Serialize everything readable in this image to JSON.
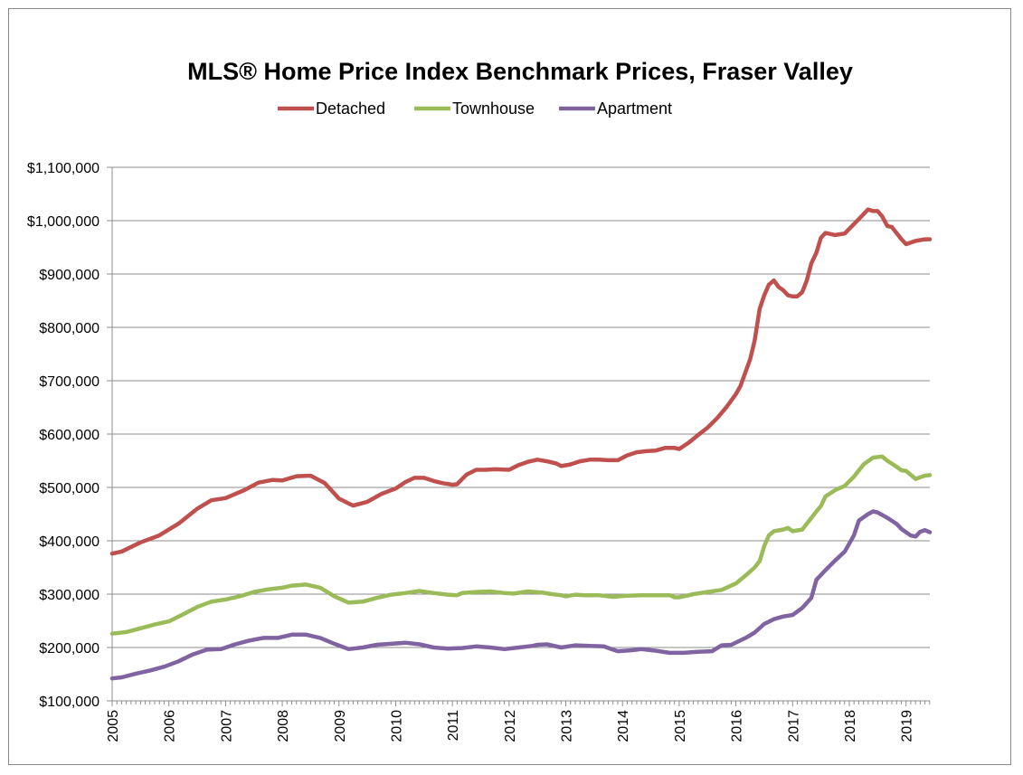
{
  "chart_data": {
    "type": "line",
    "title": "MLS® Home Price Index Benchmark Prices, Fraser Valley",
    "xlabel": "",
    "ylabel": "",
    "ylim": [
      100000,
      1100000
    ],
    "xlim": [
      2005,
      2019.42
    ],
    "y_ticks": [
      100000,
      200000,
      300000,
      400000,
      500000,
      600000,
      700000,
      800000,
      900000,
      1000000,
      1100000
    ],
    "y_tick_labels": [
      "$100,000",
      "$200,000",
      "$300,000",
      "$400,000",
      "$500,000",
      "$600,000",
      "$700,000",
      "$800,000",
      "$900,000",
      "$1,000,000",
      "$1,100,000"
    ],
    "x_ticks": [
      2005,
      2006,
      2007,
      2008,
      2009,
      2010,
      2011,
      2012,
      2013,
      2014,
      2015,
      2016,
      2017,
      2018,
      2019
    ],
    "x_tick_labels": [
      "2005",
      "2006",
      "2007",
      "2008",
      "2009",
      "2010",
      "2011",
      "2012",
      "2013",
      "2014",
      "2015",
      "2016",
      "2017",
      "2018",
      "2019"
    ],
    "grid": "horizontal",
    "legend_position": "top",
    "series": [
      {
        "name": "Detached",
        "color": "#c0504d",
        "points": [
          [
            2005.0,
            376000
          ],
          [
            2005.17,
            380000
          ],
          [
            2005.5,
            397000
          ],
          [
            2005.83,
            410000
          ],
          [
            2006.17,
            432000
          ],
          [
            2006.5,
            460000
          ],
          [
            2006.75,
            476000
          ],
          [
            2007.0,
            480000
          ],
          [
            2007.33,
            495000
          ],
          [
            2007.58,
            509000
          ],
          [
            2007.83,
            514000
          ],
          [
            2008.0,
            513000
          ],
          [
            2008.25,
            521000
          ],
          [
            2008.5,
            522000
          ],
          [
            2008.75,
            508000
          ],
          [
            2009.0,
            479000
          ],
          [
            2009.17,
            470000
          ],
          [
            2009.25,
            466000
          ],
          [
            2009.5,
            473000
          ],
          [
            2009.75,
            488000
          ],
          [
            2010.0,
            498000
          ],
          [
            2010.17,
            510000
          ],
          [
            2010.33,
            518000
          ],
          [
            2010.5,
            518000
          ],
          [
            2010.67,
            512000
          ],
          [
            2010.83,
            508000
          ],
          [
            2011.0,
            505000
          ],
          [
            2011.08,
            506000
          ],
          [
            2011.25,
            524000
          ],
          [
            2011.42,
            533000
          ],
          [
            2011.58,
            533000
          ],
          [
            2011.75,
            534000
          ],
          [
            2012.0,
            533000
          ],
          [
            2012.17,
            542000
          ],
          [
            2012.33,
            548000
          ],
          [
            2012.5,
            552000
          ],
          [
            2012.67,
            549000
          ],
          [
            2012.83,
            545000
          ],
          [
            2012.92,
            540000
          ],
          [
            2013.08,
            543000
          ],
          [
            2013.25,
            549000
          ],
          [
            2013.42,
            552000
          ],
          [
            2013.58,
            552000
          ],
          [
            2013.75,
            551000
          ],
          [
            2013.92,
            551000
          ],
          [
            2014.08,
            560000
          ],
          [
            2014.25,
            566000
          ],
          [
            2014.42,
            568000
          ],
          [
            2014.58,
            569000
          ],
          [
            2014.75,
            574000
          ],
          [
            2014.92,
            574000
          ],
          [
            2015.0,
            572000
          ],
          [
            2015.17,
            584000
          ],
          [
            2015.33,
            598000
          ],
          [
            2015.5,
            612000
          ],
          [
            2015.67,
            630000
          ],
          [
            2015.83,
            650000
          ],
          [
            2016.0,
            675000
          ],
          [
            2016.08,
            690000
          ],
          [
            2016.25,
            740000
          ],
          [
            2016.33,
            775000
          ],
          [
            2016.42,
            835000
          ],
          [
            2016.5,
            860000
          ],
          [
            2016.58,
            880000
          ],
          [
            2016.67,
            888000
          ],
          [
            2016.75,
            876000
          ],
          [
            2016.83,
            870000
          ],
          [
            2016.92,
            860000
          ],
          [
            2017.0,
            858000
          ],
          [
            2017.08,
            858000
          ],
          [
            2017.17,
            866000
          ],
          [
            2017.25,
            888000
          ],
          [
            2017.33,
            920000
          ],
          [
            2017.42,
            940000
          ],
          [
            2017.5,
            968000
          ],
          [
            2017.58,
            977000
          ],
          [
            2017.75,
            973000
          ],
          [
            2017.92,
            976000
          ],
          [
            2018.0,
            985000
          ],
          [
            2018.17,
            1003000
          ],
          [
            2018.33,
            1021000
          ],
          [
            2018.42,
            1018000
          ],
          [
            2018.5,
            1018000
          ],
          [
            2018.58,
            1008000
          ],
          [
            2018.67,
            990000
          ],
          [
            2018.75,
            988000
          ],
          [
            2018.92,
            965000
          ],
          [
            2019.0,
            956000
          ],
          [
            2019.17,
            962000
          ],
          [
            2019.33,
            965000
          ],
          [
            2019.42,
            965000
          ]
        ]
      },
      {
        "name": "Townhouse",
        "color": "#9bbb59",
        "points": [
          [
            2005.0,
            226000
          ],
          [
            2005.25,
            229000
          ],
          [
            2005.5,
            236000
          ],
          [
            2005.75,
            243000
          ],
          [
            2006.0,
            249000
          ],
          [
            2006.25,
            262000
          ],
          [
            2006.5,
            276000
          ],
          [
            2006.75,
            286000
          ],
          [
            2007.0,
            290000
          ],
          [
            2007.25,
            296000
          ],
          [
            2007.5,
            304000
          ],
          [
            2007.75,
            309000
          ],
          [
            2008.0,
            312000
          ],
          [
            2008.17,
            316000
          ],
          [
            2008.42,
            318000
          ],
          [
            2008.67,
            312000
          ],
          [
            2008.92,
            296000
          ],
          [
            2009.17,
            284000
          ],
          [
            2009.42,
            286000
          ],
          [
            2009.67,
            293000
          ],
          [
            2009.92,
            299000
          ],
          [
            2010.17,
            302000
          ],
          [
            2010.42,
            306000
          ],
          [
            2010.67,
            302000
          ],
          [
            2010.92,
            299000
          ],
          [
            2011.08,
            298000
          ],
          [
            2011.17,
            302000
          ],
          [
            2011.42,
            304000
          ],
          [
            2011.67,
            305000
          ],
          [
            2011.92,
            302000
          ],
          [
            2012.08,
            301000
          ],
          [
            2012.33,
            305000
          ],
          [
            2012.58,
            303000
          ],
          [
            2012.75,
            300000
          ],
          [
            2012.92,
            298000
          ],
          [
            2013.0,
            296000
          ],
          [
            2013.17,
            299000
          ],
          [
            2013.33,
            298000
          ],
          [
            2013.58,
            298000
          ],
          [
            2013.83,
            295000
          ],
          [
            2014.08,
            297000
          ],
          [
            2014.33,
            298000
          ],
          [
            2014.58,
            298000
          ],
          [
            2014.83,
            298000
          ],
          [
            2014.92,
            294000
          ],
          [
            2015.0,
            294000
          ],
          [
            2015.25,
            300000
          ],
          [
            2015.5,
            304000
          ],
          [
            2015.75,
            308000
          ],
          [
            2016.0,
            320000
          ],
          [
            2016.17,
            335000
          ],
          [
            2016.33,
            350000
          ],
          [
            2016.42,
            362000
          ],
          [
            2016.5,
            390000
          ],
          [
            2016.58,
            410000
          ],
          [
            2016.67,
            418000
          ],
          [
            2016.83,
            421000
          ],
          [
            2016.92,
            424000
          ],
          [
            2017.0,
            418000
          ],
          [
            2017.17,
            421000
          ],
          [
            2017.25,
            432000
          ],
          [
            2017.42,
            455000
          ],
          [
            2017.5,
            465000
          ],
          [
            2017.58,
            483000
          ],
          [
            2017.75,
            495000
          ],
          [
            2017.92,
            503000
          ],
          [
            2018.08,
            520000
          ],
          [
            2018.25,
            543000
          ],
          [
            2018.42,
            556000
          ],
          [
            2018.58,
            558000
          ],
          [
            2018.67,
            550000
          ],
          [
            2018.83,
            539000
          ],
          [
            2018.92,
            532000
          ],
          [
            2019.0,
            531000
          ],
          [
            2019.17,
            516000
          ],
          [
            2019.33,
            522000
          ],
          [
            2019.42,
            523000
          ]
        ]
      },
      {
        "name": "Apartment",
        "color": "#8064a2",
        "points": [
          [
            2005.0,
            142000
          ],
          [
            2005.17,
            144000
          ],
          [
            2005.42,
            151000
          ],
          [
            2005.67,
            157000
          ],
          [
            2005.92,
            164000
          ],
          [
            2006.17,
            174000
          ],
          [
            2006.42,
            187000
          ],
          [
            2006.67,
            196000
          ],
          [
            2006.92,
            197000
          ],
          [
            2007.17,
            206000
          ],
          [
            2007.42,
            213000
          ],
          [
            2007.67,
            218000
          ],
          [
            2007.92,
            218000
          ],
          [
            2008.17,
            224000
          ],
          [
            2008.42,
            224000
          ],
          [
            2008.67,
            218000
          ],
          [
            2008.92,
            207000
          ],
          [
            2009.17,
            197000
          ],
          [
            2009.42,
            200000
          ],
          [
            2009.67,
            205000
          ],
          [
            2009.92,
            207000
          ],
          [
            2010.17,
            209000
          ],
          [
            2010.42,
            206000
          ],
          [
            2010.67,
            200000
          ],
          [
            2010.92,
            198000
          ],
          [
            2011.17,
            199000
          ],
          [
            2011.42,
            202000
          ],
          [
            2011.67,
            200000
          ],
          [
            2011.92,
            197000
          ],
          [
            2012.17,
            200000
          ],
          [
            2012.42,
            203000
          ],
          [
            2012.5,
            205000
          ],
          [
            2012.67,
            206000
          ],
          [
            2012.92,
            200000
          ],
          [
            2013.17,
            204000
          ],
          [
            2013.42,
            203000
          ],
          [
            2013.67,
            202000
          ],
          [
            2013.83,
            196000
          ],
          [
            2013.92,
            193000
          ],
          [
            2014.17,
            195000
          ],
          [
            2014.33,
            197000
          ],
          [
            2014.58,
            194000
          ],
          [
            2014.83,
            190000
          ],
          [
            2015.08,
            190000
          ],
          [
            2015.33,
            192000
          ],
          [
            2015.58,
            193000
          ],
          [
            2015.75,
            204000
          ],
          [
            2015.92,
            205000
          ],
          [
            2016.17,
            218000
          ],
          [
            2016.33,
            228000
          ],
          [
            2016.5,
            244000
          ],
          [
            2016.67,
            253000
          ],
          [
            2016.83,
            258000
          ],
          [
            2017.0,
            261000
          ],
          [
            2017.17,
            274000
          ],
          [
            2017.33,
            293000
          ],
          [
            2017.42,
            327000
          ],
          [
            2017.58,
            345000
          ],
          [
            2017.75,
            363000
          ],
          [
            2017.92,
            380000
          ],
          [
            2018.08,
            410000
          ],
          [
            2018.17,
            438000
          ],
          [
            2018.33,
            450000
          ],
          [
            2018.42,
            455000
          ],
          [
            2018.5,
            453000
          ],
          [
            2018.67,
            443000
          ],
          [
            2018.83,
            432000
          ],
          [
            2018.92,
            422000
          ],
          [
            2019.08,
            410000
          ],
          [
            2019.17,
            408000
          ],
          [
            2019.25,
            417000
          ],
          [
            2019.33,
            420000
          ],
          [
            2019.42,
            416000
          ]
        ]
      }
    ]
  }
}
